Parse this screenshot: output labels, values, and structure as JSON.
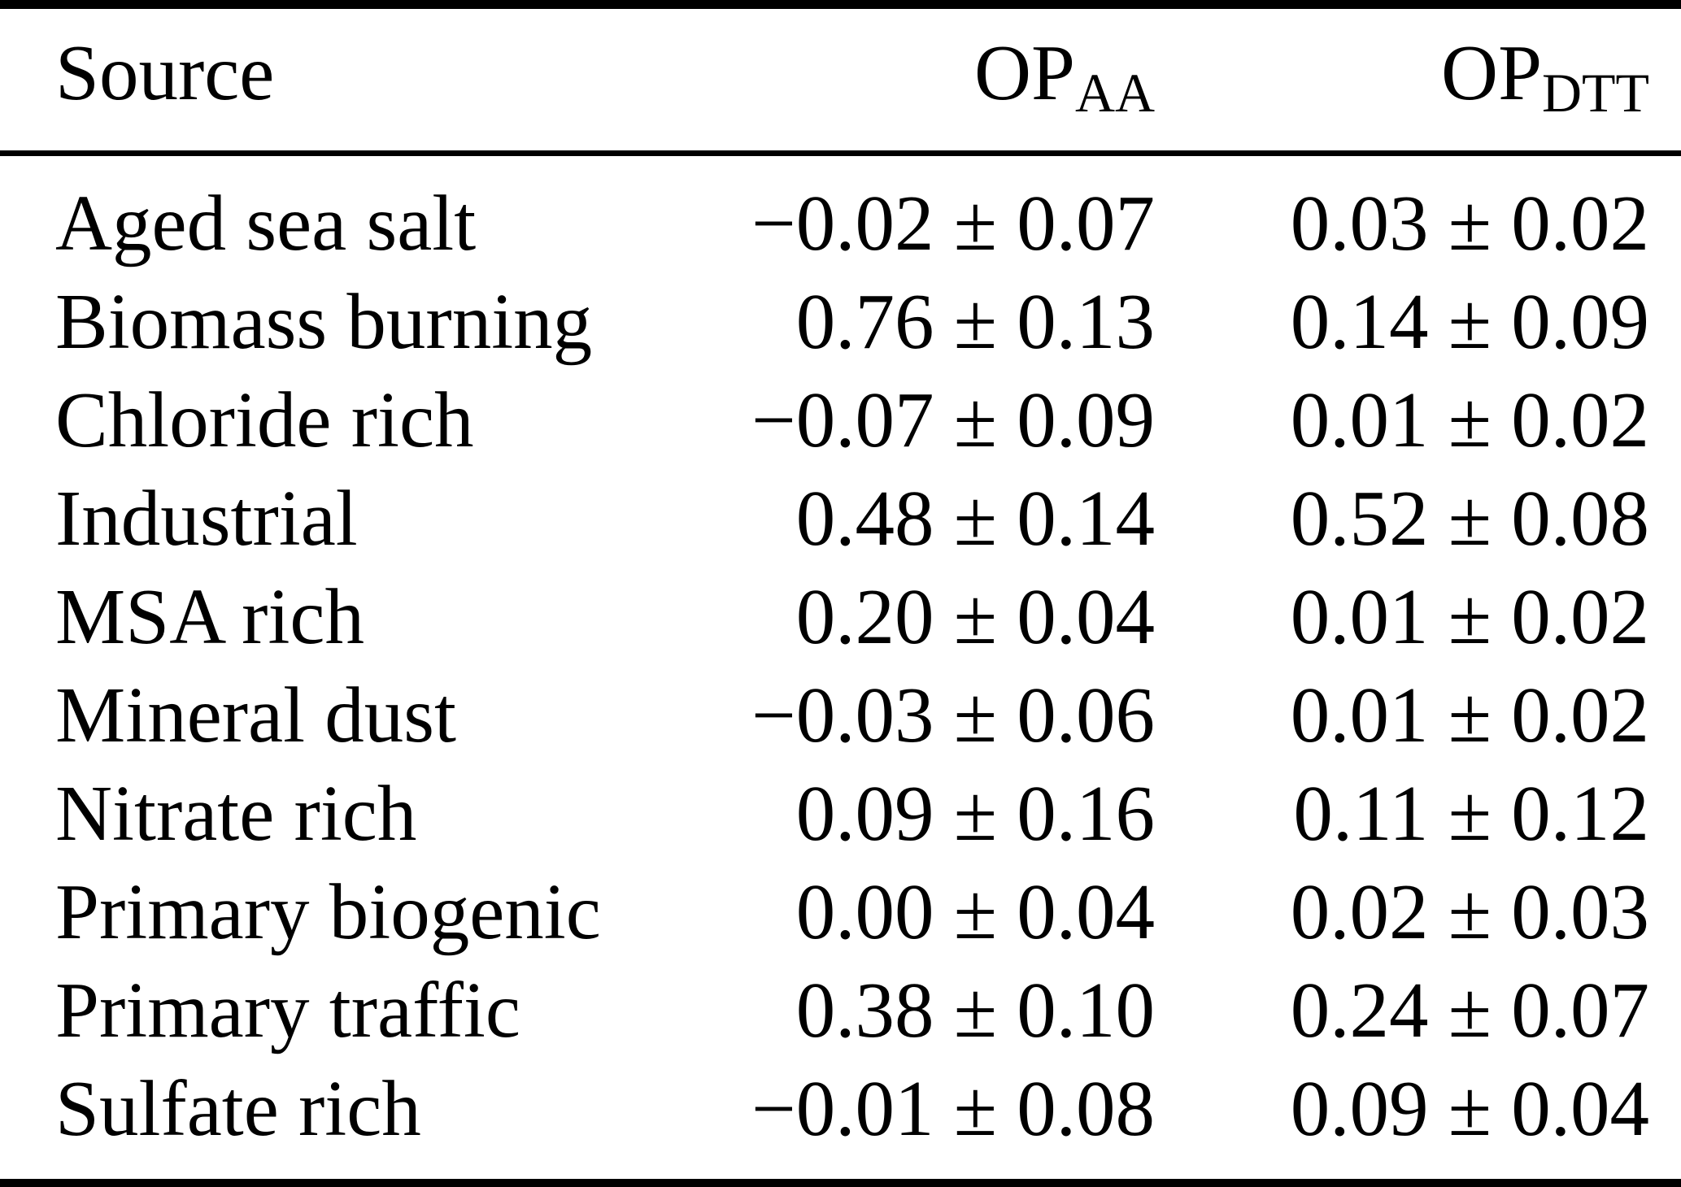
{
  "colors": {
    "background": "#ffffff",
    "text": "#000000",
    "rule": "#000000"
  },
  "header": {
    "source": "Source",
    "op": "OP",
    "sub_aa": "AA",
    "sub_dtt": "DTT"
  },
  "rows": [
    {
      "source": "Aged sea salt",
      "op_aa": "−0.02 ± 0.07",
      "op_dtt": "0.03 ± 0.02"
    },
    {
      "source": "Biomass burning",
      "op_aa": "0.76 ± 0.13",
      "op_dtt": "0.14 ± 0.09"
    },
    {
      "source": "Chloride rich",
      "op_aa": "−0.07 ± 0.09",
      "op_dtt": "0.01 ± 0.02"
    },
    {
      "source": "Industrial",
      "op_aa": "0.48 ± 0.14",
      "op_dtt": "0.52 ± 0.08"
    },
    {
      "source": "MSA rich",
      "op_aa": "0.20 ± 0.04",
      "op_dtt": "0.01 ± 0.02"
    },
    {
      "source": "Mineral dust",
      "op_aa": "−0.03 ± 0.06",
      "op_dtt": "0.01 ± 0.02"
    },
    {
      "source": "Nitrate rich",
      "op_aa": "0.09 ± 0.16",
      "op_dtt": "0.11 ± 0.12"
    },
    {
      "source": "Primary biogenic",
      "op_aa": "0.00 ± 0.04",
      "op_dtt": "0.02 ± 0.03"
    },
    {
      "source": "Primary traffic",
      "op_aa": "0.38 ± 0.10",
      "op_dtt": "0.24 ± 0.07"
    },
    {
      "source": "Sulfate rich",
      "op_aa": "−0.01 ± 0.08",
      "op_dtt": "0.09 ± 0.04"
    }
  ],
  "chart_data": {
    "type": "table",
    "title": "",
    "columns": [
      "Source",
      "OP_AA",
      "OP_DTT"
    ],
    "rows": [
      {
        "source": "Aged sea salt",
        "OP_AA": {
          "value": -0.02,
          "sd": 0.07
        },
        "OP_DTT": {
          "value": 0.03,
          "sd": 0.02
        }
      },
      {
        "source": "Biomass burning",
        "OP_AA": {
          "value": 0.76,
          "sd": 0.13
        },
        "OP_DTT": {
          "value": 0.14,
          "sd": 0.09
        }
      },
      {
        "source": "Chloride rich",
        "OP_AA": {
          "value": -0.07,
          "sd": 0.09
        },
        "OP_DTT": {
          "value": 0.01,
          "sd": 0.02
        }
      },
      {
        "source": "Industrial",
        "OP_AA": {
          "value": 0.48,
          "sd": 0.14
        },
        "OP_DTT": {
          "value": 0.52,
          "sd": 0.08
        }
      },
      {
        "source": "MSA rich",
        "OP_AA": {
          "value": 0.2,
          "sd": 0.04
        },
        "OP_DTT": {
          "value": 0.01,
          "sd": 0.02
        }
      },
      {
        "source": "Mineral dust",
        "OP_AA": {
          "value": -0.03,
          "sd": 0.06
        },
        "OP_DTT": {
          "value": 0.01,
          "sd": 0.02
        }
      },
      {
        "source": "Nitrate rich",
        "OP_AA": {
          "value": 0.09,
          "sd": 0.16
        },
        "OP_DTT": {
          "value": 0.11,
          "sd": 0.12
        }
      },
      {
        "source": "Primary biogenic",
        "OP_AA": {
          "value": 0.0,
          "sd": 0.04
        },
        "OP_DTT": {
          "value": 0.02,
          "sd": 0.03
        }
      },
      {
        "source": "Primary traffic",
        "OP_AA": {
          "value": 0.38,
          "sd": 0.1
        },
        "OP_DTT": {
          "value": 0.24,
          "sd": 0.07
        }
      },
      {
        "source": "Sulfate rich",
        "OP_AA": {
          "value": -0.01,
          "sd": 0.08
        },
        "OP_DTT": {
          "value": 0.09,
          "sd": 0.04
        }
      }
    ]
  }
}
